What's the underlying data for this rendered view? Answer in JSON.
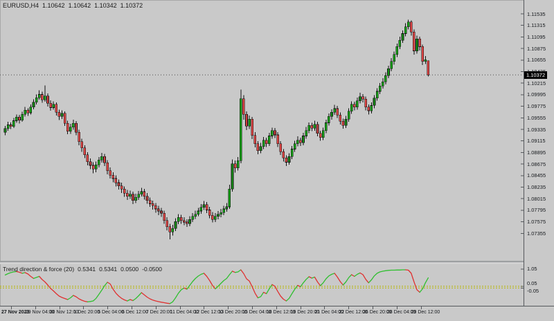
{
  "header": {
    "symbol_period": "EURUSD,H4",
    "open": "1.10642",
    "high": "1.10642",
    "low": "1.10342",
    "close": "1.10372"
  },
  "indicator": {
    "name": "Trend direction & force (20)",
    "value1": "0.5341",
    "value2": "0.5341",
    "level_up": "0.0500",
    "level_down": "-0.0500"
  },
  "price_axis": {
    "current_price": "1.10372"
  },
  "time_axis": {
    "labels": [
      "27 Nov 2023",
      "29 Nov 04:00",
      "30 Nov 12:00",
      "1 Dec 20:00",
      "5 Dec 04:00",
      "6 Dec 12:00",
      "7 Dec 20:00",
      "11 Dec 04:00",
      "12 Dec 12:00",
      "13 Dec 20:00",
      "15 Dec 04:00",
      "18 Dec 12:00",
      "19 Dec 20:00",
      "21 Dec 04:00",
      "22 Dec 12:00",
      "26 Dec 20:00",
      "28 Dec 04:00",
      "29 Dec 12:00"
    ]
  },
  "colors": {
    "background": "#c9c9c9",
    "bull_body": "#169b16",
    "bear_body": "#d84343",
    "candle_outline": "#101010",
    "wick": "#101010",
    "indicator_up": "#2fbf2f",
    "indicator_down": "#e03030",
    "indicator_levels": "#b5b500",
    "price_line": "#4d4d4d",
    "tag_bg": "#000000",
    "tag_text": "#ffffff",
    "axis_line": "#55585c",
    "text": "#1a1a1a"
  },
  "chart_data": [
    {
      "type": "candlestick",
      "title": "EURUSD H4",
      "y_ticks": [
        1.11535,
        1.11315,
        1.11095,
        1.10875,
        1.10655,
        1.10435,
        1.10215,
        1.09995,
        1.09775,
        1.09555,
        1.09335,
        1.09115,
        1.08895,
        1.08675,
        1.08455,
        1.08235,
        1.08015,
        1.07795,
        1.07575,
        1.07355
      ],
      "last_bar": {
        "open": 1.10642,
        "high": 1.10642,
        "low": 1.10342,
        "close": 1.10372
      },
      "ohlc": [
        [
          1.0928,
          1.094,
          1.0922,
          1.0935
        ],
        [
          1.0935,
          1.0948,
          1.0931,
          1.0942
        ],
        [
          1.0942,
          1.0947,
          1.0934,
          1.0939
        ],
        [
          1.0939,
          1.0955,
          1.0936,
          1.095
        ],
        [
          1.095,
          1.0962,
          1.0946,
          1.0957
        ],
        [
          1.0957,
          1.0961,
          1.0945,
          1.0951
        ],
        [
          1.0951,
          1.0967,
          1.0948,
          1.0962
        ],
        [
          1.0962,
          1.0976,
          1.0958,
          1.097
        ],
        [
          1.097,
          1.0974,
          1.0959,
          1.0965
        ],
        [
          1.0965,
          1.0981,
          1.0962,
          1.0976
        ],
        [
          1.0976,
          1.0991,
          1.0972,
          1.0985
        ],
        [
          1.0985,
          1.1,
          1.0981,
          1.0994
        ],
        [
          1.0994,
          1.1008,
          1.099,
          1.1
        ],
        [
          1.1,
          1.1005,
          1.0984,
          1.099
        ],
        [
          1.099,
          1.1017,
          1.0986,
          1.0997
        ],
        [
          1.0997,
          1.1002,
          1.0977,
          1.0983
        ],
        [
          1.0983,
          1.0989,
          1.0969,
          1.0975
        ],
        [
          1.0975,
          1.0987,
          1.0971,
          1.0981
        ],
        [
          1.0981,
          1.0985,
          1.096,
          1.0966
        ],
        [
          1.0966,
          1.0971,
          1.0951,
          1.0958
        ],
        [
          1.0958,
          1.097,
          1.0953,
          1.0964
        ],
        [
          1.0964,
          1.0968,
          1.094,
          1.0945
        ],
        [
          1.0945,
          1.095,
          1.0924,
          1.093
        ],
        [
          1.093,
          1.0944,
          1.0925,
          1.0938
        ],
        [
          1.0938,
          1.0952,
          1.0933,
          1.0945
        ],
        [
          1.0945,
          1.0949,
          1.0922,
          1.0928
        ],
        [
          1.0928,
          1.0933,
          1.0903,
          1.091
        ],
        [
          1.091,
          1.0916,
          1.0891,
          1.0898
        ],
        [
          1.0898,
          1.0903,
          1.0879,
          1.0885
        ],
        [
          1.0885,
          1.089,
          1.0865,
          1.0872
        ],
        [
          1.0872,
          1.0878,
          1.0858,
          1.0865
        ],
        [
          1.0865,
          1.0871,
          1.085,
          1.0858
        ],
        [
          1.0858,
          1.0872,
          1.0852,
          1.0866
        ],
        [
          1.0866,
          1.0881,
          1.0861,
          1.0875
        ],
        [
          1.0875,
          1.0889,
          1.087,
          1.0882
        ],
        [
          1.0882,
          1.0887,
          1.0864,
          1.087
        ],
        [
          1.087,
          1.0875,
          1.0848,
          1.0855
        ],
        [
          1.0855,
          1.0861,
          1.084,
          1.0846
        ],
        [
          1.0846,
          1.0852,
          1.0833,
          1.084
        ],
        [
          1.084,
          1.0846,
          1.0825,
          1.0832
        ],
        [
          1.0832,
          1.0838,
          1.0819,
          1.0826
        ],
        [
          1.0826,
          1.0832,
          1.0812,
          1.082
        ],
        [
          1.082,
          1.0825,
          1.0805,
          1.0812
        ],
        [
          1.0812,
          1.0818,
          1.0799,
          1.0806
        ],
        [
          1.0806,
          1.0817,
          1.0801,
          1.081
        ],
        [
          1.081,
          1.0815,
          1.0791,
          1.0798
        ],
        [
          1.0798,
          1.0811,
          1.0793,
          1.0804
        ],
        [
          1.0804,
          1.0816,
          1.0799,
          1.081
        ],
        [
          1.081,
          1.0822,
          1.0806,
          1.0815
        ],
        [
          1.0815,
          1.082,
          1.08,
          1.0806
        ],
        [
          1.0806,
          1.0812,
          1.0792,
          1.0798
        ],
        [
          1.0798,
          1.0804,
          1.0786,
          1.0792
        ],
        [
          1.0792,
          1.0798,
          1.0781,
          1.0788
        ],
        [
          1.0788,
          1.0793,
          1.0775,
          1.0782
        ],
        [
          1.0782,
          1.0788,
          1.077,
          1.0778
        ],
        [
          1.0778,
          1.0784,
          1.0767,
          1.0774
        ],
        [
          1.0774,
          1.0779,
          1.0754,
          1.076
        ],
        [
          1.076,
          1.0766,
          1.0741,
          1.0748
        ],
        [
          1.0748,
          1.0754,
          1.0724,
          1.0738
        ],
        [
          1.0738,
          1.0752,
          1.0731,
          1.0745
        ],
        [
          1.0745,
          1.0764,
          1.074,
          1.0758
        ],
        [
          1.0758,
          1.0772,
          1.0753,
          1.0766
        ],
        [
          1.0766,
          1.0771,
          1.0754,
          1.076
        ],
        [
          1.076,
          1.0766,
          1.0751,
          1.0757
        ],
        [
          1.0757,
          1.0762,
          1.0748,
          1.0754
        ],
        [
          1.0754,
          1.0768,
          1.0749,
          1.0762
        ],
        [
          1.0762,
          1.0774,
          1.0757,
          1.0768
        ],
        [
          1.0768,
          1.0779,
          1.0763,
          1.0772
        ],
        [
          1.0772,
          1.0784,
          1.0768,
          1.0778
        ],
        [
          1.0778,
          1.0791,
          1.0773,
          1.0785
        ],
        [
          1.0785,
          1.0797,
          1.078,
          1.079
        ],
        [
          1.079,
          1.0795,
          1.0774,
          1.078
        ],
        [
          1.078,
          1.0786,
          1.0764,
          1.077
        ],
        [
          1.077,
          1.0776,
          1.0756,
          1.0762
        ],
        [
          1.0762,
          1.0774,
          1.0757,
          1.0768
        ],
        [
          1.0768,
          1.0778,
          1.0762,
          1.0772
        ],
        [
          1.0772,
          1.0782,
          1.0766,
          1.0775
        ],
        [
          1.0775,
          1.0788,
          1.077,
          1.0782
        ],
        [
          1.0782,
          1.0793,
          1.0777,
          1.0786
        ],
        [
          1.0786,
          1.0828,
          1.0782,
          1.082
        ],
        [
          1.082,
          1.0876,
          1.0815,
          1.0868
        ],
        [
          1.0868,
          1.0874,
          1.0851,
          1.086
        ],
        [
          1.086,
          1.0881,
          1.0855,
          1.0874
        ],
        [
          1.0874,
          1.1009,
          1.0869,
          1.0992
        ],
        [
          1.0992,
          1.0999,
          1.0952,
          1.0962
        ],
        [
          1.0962,
          1.0968,
          1.0932,
          1.094
        ],
        [
          1.094,
          1.096,
          1.0934,
          1.0953
        ],
        [
          1.0953,
          1.0957,
          1.0915,
          1.0922
        ],
        [
          1.0922,
          1.0928,
          1.0899,
          1.0906
        ],
        [
          1.0906,
          1.0911,
          1.0886,
          1.0893
        ],
        [
          1.0893,
          1.0908,
          1.0888,
          1.0901
        ],
        [
          1.0901,
          1.0919,
          1.0896,
          1.0913
        ],
        [
          1.0913,
          1.0918,
          1.09,
          1.0906
        ],
        [
          1.0906,
          1.0927,
          1.0902,
          1.0921
        ],
        [
          1.0921,
          1.0937,
          1.0916,
          1.0931
        ],
        [
          1.0931,
          1.0936,
          1.0917,
          1.0923
        ],
        [
          1.0923,
          1.0928,
          1.09,
          1.0906
        ],
        [
          1.0906,
          1.0911,
          1.0885,
          1.0891
        ],
        [
          1.0891,
          1.0896,
          1.0872,
          1.0879
        ],
        [
          1.0879,
          1.0884,
          1.0864,
          1.0871
        ],
        [
          1.0871,
          1.0888,
          1.0866,
          1.0882
        ],
        [
          1.0882,
          1.0902,
          1.0877,
          1.0896
        ],
        [
          1.0896,
          1.0912,
          1.0891,
          1.0906
        ],
        [
          1.0906,
          1.092,
          1.0901,
          1.0913
        ],
        [
          1.0913,
          1.0918,
          1.0902,
          1.0908
        ],
        [
          1.0908,
          1.0927,
          1.0903,
          1.0921
        ],
        [
          1.0921,
          1.0938,
          1.0916,
          1.0931
        ],
        [
          1.0931,
          1.0947,
          1.0926,
          1.0941
        ],
        [
          1.0941,
          1.0946,
          1.093,
          1.0936
        ],
        [
          1.0936,
          1.095,
          1.0931,
          1.0943
        ],
        [
          1.0943,
          1.0948,
          1.092,
          1.0926
        ],
        [
          1.0926,
          1.0931,
          1.0912,
          1.0918
        ],
        [
          1.0918,
          1.0937,
          1.0913,
          1.0931
        ],
        [
          1.0931,
          1.0952,
          1.0926,
          1.0946
        ],
        [
          1.0946,
          1.0964,
          1.0941,
          1.0958
        ],
        [
          1.0958,
          1.0972,
          1.0952,
          1.0966
        ],
        [
          1.0966,
          1.098,
          1.0961,
          1.0973
        ],
        [
          1.0973,
          1.0978,
          1.0955,
          1.0961
        ],
        [
          1.0961,
          1.0966,
          1.0943,
          1.0949
        ],
        [
          1.0949,
          1.0954,
          1.0935,
          1.0941
        ],
        [
          1.0941,
          1.0959,
          1.0936,
          1.0953
        ],
        [
          1.0953,
          1.0974,
          1.0948,
          1.0968
        ],
        [
          1.0968,
          1.0987,
          1.0963,
          1.0981
        ],
        [
          1.0981,
          1.0986,
          1.097,
          1.0976
        ],
        [
          1.0976,
          1.0994,
          1.0971,
          1.0988
        ],
        [
          1.0988,
          1.1003,
          1.0983,
          1.0996
        ],
        [
          1.0996,
          1.1001,
          1.0985,
          1.0991
        ],
        [
          1.0991,
          1.0996,
          1.097,
          1.0976
        ],
        [
          1.0976,
          1.0981,
          1.0962,
          1.0969
        ],
        [
          1.0969,
          1.0985,
          1.0964,
          1.0979
        ],
        [
          1.0979,
          1.0999,
          1.0974,
          1.0993
        ],
        [
          1.0993,
          1.1012,
          1.0988,
          1.1006
        ],
        [
          1.1006,
          1.1022,
          1.1001,
          1.1016
        ],
        [
          1.1016,
          1.1031,
          1.1011,
          1.1024
        ],
        [
          1.1024,
          1.1042,
          1.1019,
          1.1036
        ],
        [
          1.1036,
          1.1055,
          1.1031,
          1.1049
        ],
        [
          1.1049,
          1.1069,
          1.1044,
          1.1063
        ],
        [
          1.1063,
          1.1082,
          1.1057,
          1.1076
        ],
        [
          1.1076,
          1.1097,
          1.1071,
          1.1091
        ],
        [
          1.1091,
          1.111,
          1.1086,
          1.1103
        ],
        [
          1.1103,
          1.1122,
          1.1098,
          1.1116
        ],
        [
          1.1116,
          1.1136,
          1.1111,
          1.1129
        ],
        [
          1.1129,
          1.1142,
          1.1124,
          1.1138
        ],
        [
          1.1138,
          1.1141,
          1.1112,
          1.1119
        ],
        [
          1.1119,
          1.1124,
          1.1076,
          1.1083
        ],
        [
          1.1083,
          1.1112,
          1.1078,
          1.1106
        ],
        [
          1.1106,
          1.111,
          1.1084,
          1.1091
        ],
        [
          1.1091,
          1.1095,
          1.1056,
          1.1063
        ],
        [
          1.1063,
          1.1073,
          1.1058,
          1.1066
        ],
        [
          1.10642,
          1.10642,
          1.10342,
          1.10372
        ]
      ]
    },
    {
      "type": "line",
      "name": "Trend direction & force",
      "period": 20,
      "levels": [
        0.05,
        -0.05
      ],
      "y_ticks": [
        1.05,
        0.05,
        -0.05
      ],
      "values": [
        0.7,
        0.78,
        0.84,
        0.88,
        0.9,
        0.86,
        0.8,
        0.84,
        0.76,
        0.62,
        0.5,
        0.56,
        0.62,
        0.44,
        0.3,
        0.12,
        -0.08,
        -0.22,
        -0.38,
        -0.52,
        -0.6,
        -0.66,
        -0.72,
        -0.62,
        -0.48,
        -0.56,
        -0.68,
        -0.76,
        -0.82,
        -0.85,
        -0.83,
        -0.8,
        -0.65,
        -0.42,
        -0.18,
        0.08,
        0.28,
        0.18,
        -0.12,
        -0.35,
        -0.52,
        -0.65,
        -0.74,
        -0.8,
        -0.72,
        -0.78,
        -0.66,
        -0.5,
        -0.32,
        -0.45,
        -0.58,
        -0.68,
        -0.75,
        -0.8,
        -0.84,
        -0.87,
        -0.9,
        -0.93,
        -0.95,
        -0.85,
        -0.62,
        -0.35,
        -0.15,
        -0.05,
        -0.12,
        0.1,
        0.32,
        0.5,
        0.64,
        0.74,
        0.8,
        0.62,
        0.38,
        0.1,
        -0.1,
        0.05,
        0.22,
        0.38,
        0.5,
        0.72,
        0.92,
        0.85,
        0.88,
        1.0,
        0.78,
        0.48,
        0.35,
        0.02,
        -0.35,
        -0.62,
        -0.55,
        -0.3,
        -0.38,
        -0.1,
        0.15,
        0.05,
        -0.25,
        -0.52,
        -0.7,
        -0.8,
        -0.65,
        -0.38,
        -0.12,
        0.1,
        0.02,
        0.25,
        0.45,
        0.6,
        0.52,
        0.58,
        0.3,
        0.08,
        0.25,
        0.48,
        0.65,
        0.74,
        0.8,
        0.58,
        0.32,
        0.12,
        0.3,
        0.55,
        0.72,
        0.62,
        0.74,
        0.82,
        0.72,
        0.45,
        0.25,
        0.42,
        0.65,
        0.8,
        0.88,
        0.92,
        0.95,
        0.97,
        0.98,
        0.98,
        0.99,
        0.99,
        1.0,
        1.0,
        0.98,
        0.8,
        0.3,
        -0.15,
        -0.3,
        -0.1,
        0.25,
        0.5341
      ]
    }
  ]
}
